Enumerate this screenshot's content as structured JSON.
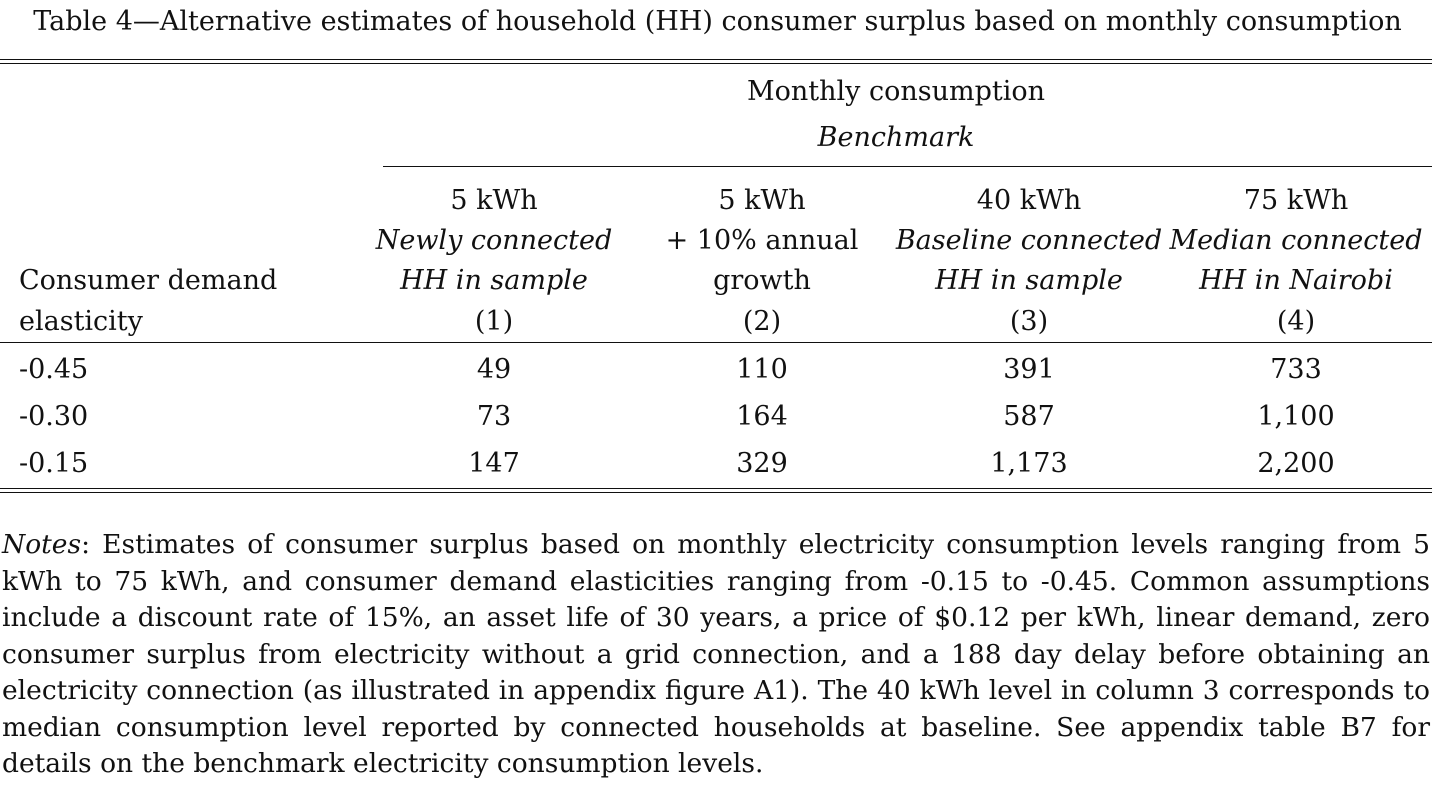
{
  "title": "Table 4—Alternative estimates of household (HH) consumer surplus based on monthly consumption",
  "header": {
    "group_label": "Monthly consumption",
    "group_sublabel": "Benchmark",
    "row_header_line1": "Consumer demand",
    "row_header_line2": "elasticity",
    "columns": [
      {
        "line1": "5 kWh",
        "line2": "Newly connected",
        "line3": "HH in sample",
        "number": "(1)",
        "line2_italic": true,
        "line3_italic": true
      },
      {
        "line1": "5 kWh",
        "line2": "+ 10% annual",
        "line3": "growth",
        "number": "(2)",
        "line2_italic": false,
        "line3_italic": false
      },
      {
        "line1": "40 kWh",
        "line2": "Baseline connected",
        "line3": "HH in sample",
        "number": "(3)",
        "line2_italic": true,
        "line3_italic": true
      },
      {
        "line1": "75 kWh",
        "line2": "Median connected",
        "line3": "HH in Nairobi",
        "number": "(4)",
        "line2_italic": true,
        "line3_italic": true
      }
    ]
  },
  "rows": [
    {
      "elasticity": "-0.45",
      "values": [
        "49",
        "110",
        "391",
        "733"
      ]
    },
    {
      "elasticity": "-0.30",
      "values": [
        "73",
        "164",
        "587",
        "1,100"
      ]
    },
    {
      "elasticity": "-0.15",
      "values": [
        "147",
        "329",
        "1,173",
        "2,200"
      ]
    }
  ],
  "notes": {
    "label": "Notes",
    "text": ": Estimates of consumer surplus based on monthly electricity consumption levels ranging from 5 kWh to 75 kWh, and consumer demand elasticities ranging from -0.15 to -0.45. Common assumptions include a discount rate of 15%, an asset life of 30 years, a price of $0.12 per kWh, linear demand, zero consumer surplus from electricity without a grid connection, and a 188 day delay before obtaining an electricity connection (as illustrated in appendix figure A1). The 40 kWh level in column 3 corresponds to median consumption level reported by connected households at baseline. See appendix table B7 for details on the benchmark electricity consumption levels."
  }
}
